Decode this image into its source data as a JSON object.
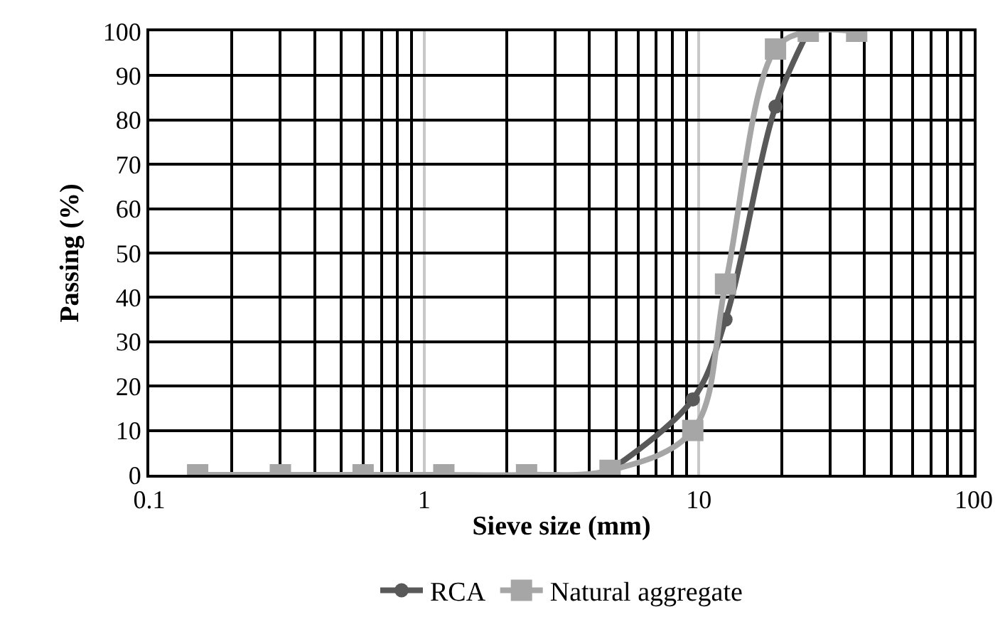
{
  "chart_data": {
    "type": "line",
    "xlabel": "Sieve size (mm)",
    "ylabel": "Passing (%)",
    "log": "x",
    "xlim": [
      0.1,
      100
    ],
    "xticks": [
      0.1,
      1,
      10,
      100
    ],
    "ylim": [
      0,
      100
    ],
    "yticks": [
      0,
      10,
      20,
      30,
      40,
      50,
      60,
      70,
      80,
      90,
      100
    ],
    "grid": true,
    "legend": "bottom",
    "series": [
      {
        "name": "RCA",
        "color": "#595959",
        "marker": "circle",
        "x": [
          4.75,
          9.5,
          12.5,
          19,
          25
        ],
        "values": [
          1,
          17,
          35,
          83,
          100
        ]
      },
      {
        "name": "Natural aggregate",
        "color": "#a6a6a6",
        "marker": "square",
        "x": [
          0.15,
          0.3,
          0.6,
          1.18,
          2.36,
          4.75,
          9.5,
          12.5,
          19,
          25,
          37.5
        ],
        "values": [
          0,
          0,
          0,
          0,
          0,
          1,
          10,
          43,
          96,
          100,
          100
        ]
      }
    ]
  }
}
